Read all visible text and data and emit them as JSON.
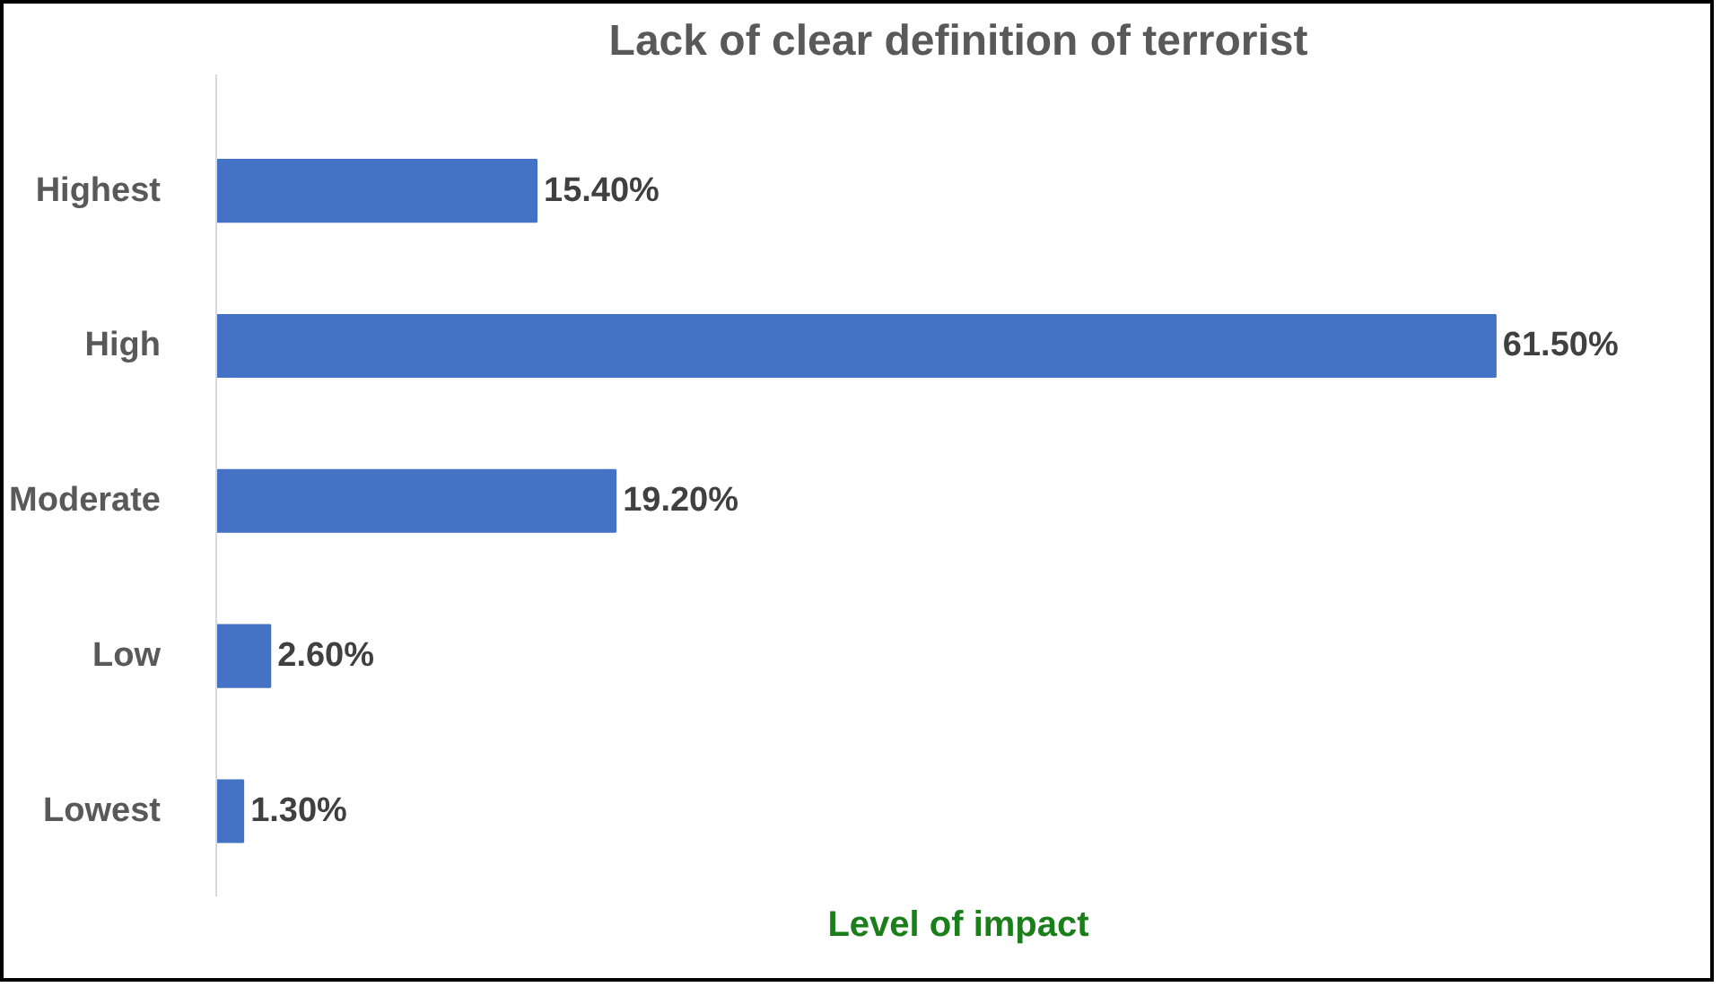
{
  "chart_data": {
    "type": "bar",
    "orientation": "horizontal",
    "title": "Lack of clear definition of terrorist",
    "xlabel": "Level of impact",
    "categories": [
      "Highest",
      "High",
      "Moderate",
      "Low",
      "Lowest"
    ],
    "values": [
      15.4,
      61.5,
      19.2,
      2.6,
      1.3
    ],
    "value_labels": [
      "15.40%",
      "61.50%",
      "19.20%",
      "2.60%",
      "1.30%"
    ],
    "color": "#4472c4",
    "grid": false
  }
}
